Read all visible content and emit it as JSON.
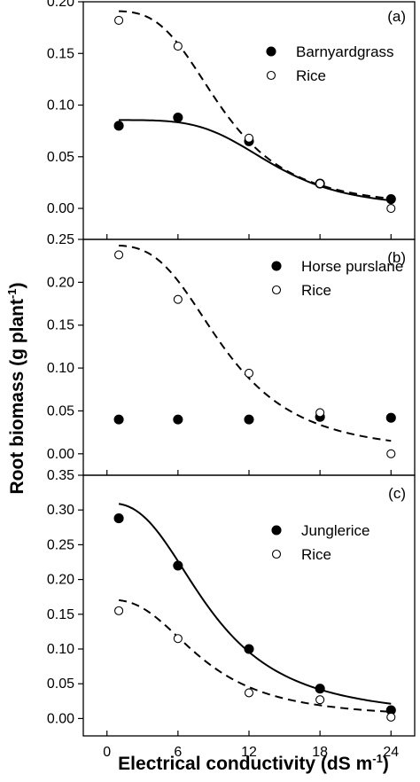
{
  "chart_data": {
    "type": "scatter",
    "xlabel": "Electrical conductivity (dS m",
    "xlabel_sup": "-1",
    "xlabel_end": ")",
    "ylabel": "Root biomass (g plant",
    "ylabel_sup": "-1",
    "ylabel_end": ")",
    "xlim": [
      -2,
      26
    ],
    "xticks": [
      0,
      6,
      12,
      18,
      24
    ],
    "xtick_labels": [
      "0",
      "6",
      "12",
      "18",
      "24"
    ],
    "panels": [
      {
        "tag": "(a)",
        "ylim": [
          -0.03,
          0.2
        ],
        "yticks": [
          0.0,
          0.05,
          0.1,
          0.15,
          0.2
        ],
        "ytick_labels": [
          "0.00",
          "0.05",
          "0.10",
          "0.15",
          "0.20"
        ],
        "legend_position": "top-right",
        "series": [
          {
            "name": "Barnyardgrass",
            "marker": "filled",
            "line": "solid",
            "x": [
              1,
              6,
              12,
              18,
              24
            ],
            "y": [
              0.08,
              0.088,
              0.065,
              0.024,
              0.009
            ],
            "fit": {
              "a": 0.0855,
              "x50": 14.0,
              "b": 4.3
            }
          },
          {
            "name": "Rice",
            "marker": "open",
            "line": "dashed",
            "x": [
              1,
              6,
              12,
              18,
              24
            ],
            "y": [
              0.182,
              0.157,
              0.068,
              0.024,
              0.0
            ],
            "fit": {
              "a": 0.191,
              "x50": 9.8,
              "b": 3.3
            }
          }
        ]
      },
      {
        "tag": "(b)",
        "ylim": [
          -0.025,
          0.25
        ],
        "yticks": [
          0.0,
          0.05,
          0.1,
          0.15,
          0.2,
          0.25
        ],
        "ytick_labels": [
          "0.00",
          "0.05",
          "0.10",
          "0.15",
          "0.20",
          "0.25"
        ],
        "legend_position": "center-right",
        "series": [
          {
            "name": "Horse purslane",
            "marker": "filled",
            "line": "none",
            "x": [
              1,
              6,
              12,
              18,
              24
            ],
            "y": [
              0.04,
              0.04,
              0.04,
              0.043,
              0.042
            ]
          },
          {
            "name": "Rice",
            "marker": "open",
            "line": "dashed",
            "x": [
              1,
              6,
              12,
              18,
              24
            ],
            "y": [
              0.232,
              0.18,
              0.094,
              0.048,
              0.0
            ],
            "fit": {
              "a": 0.243,
              "x50": 10.0,
              "b": 3.1
            }
          }
        ]
      },
      {
        "tag": "(c)",
        "ylim": [
          -0.025,
          0.35
        ],
        "yticks": [
          0.0,
          0.05,
          0.1,
          0.15,
          0.2,
          0.25,
          0.3,
          0.35
        ],
        "ytick_labels": [
          "0.00",
          "0.05",
          "0.10",
          "0.15",
          "0.20",
          "0.25",
          "0.30",
          "0.35"
        ],
        "legend_position": "top-right",
        "series": [
          {
            "name": "Junglerice",
            "marker": "filled",
            "line": "solid",
            "x": [
              1,
              6,
              12,
              18,
              24
            ],
            "y": [
              0.288,
              0.22,
              0.1,
              0.043,
              0.012
            ],
            "fit": {
              "a": 0.31,
              "x50": 8.8,
              "b": 2.6
            }
          },
          {
            "name": "Rice",
            "marker": "open",
            "line": "dashed",
            "x": [
              1,
              6,
              12,
              18,
              24
            ],
            "y": [
              0.155,
              0.115,
              0.037,
              0.027,
              0.002
            ],
            "fit": {
              "a": 0.171,
              "x50": 8.1,
              "b": 2.6
            }
          }
        ]
      }
    ]
  }
}
